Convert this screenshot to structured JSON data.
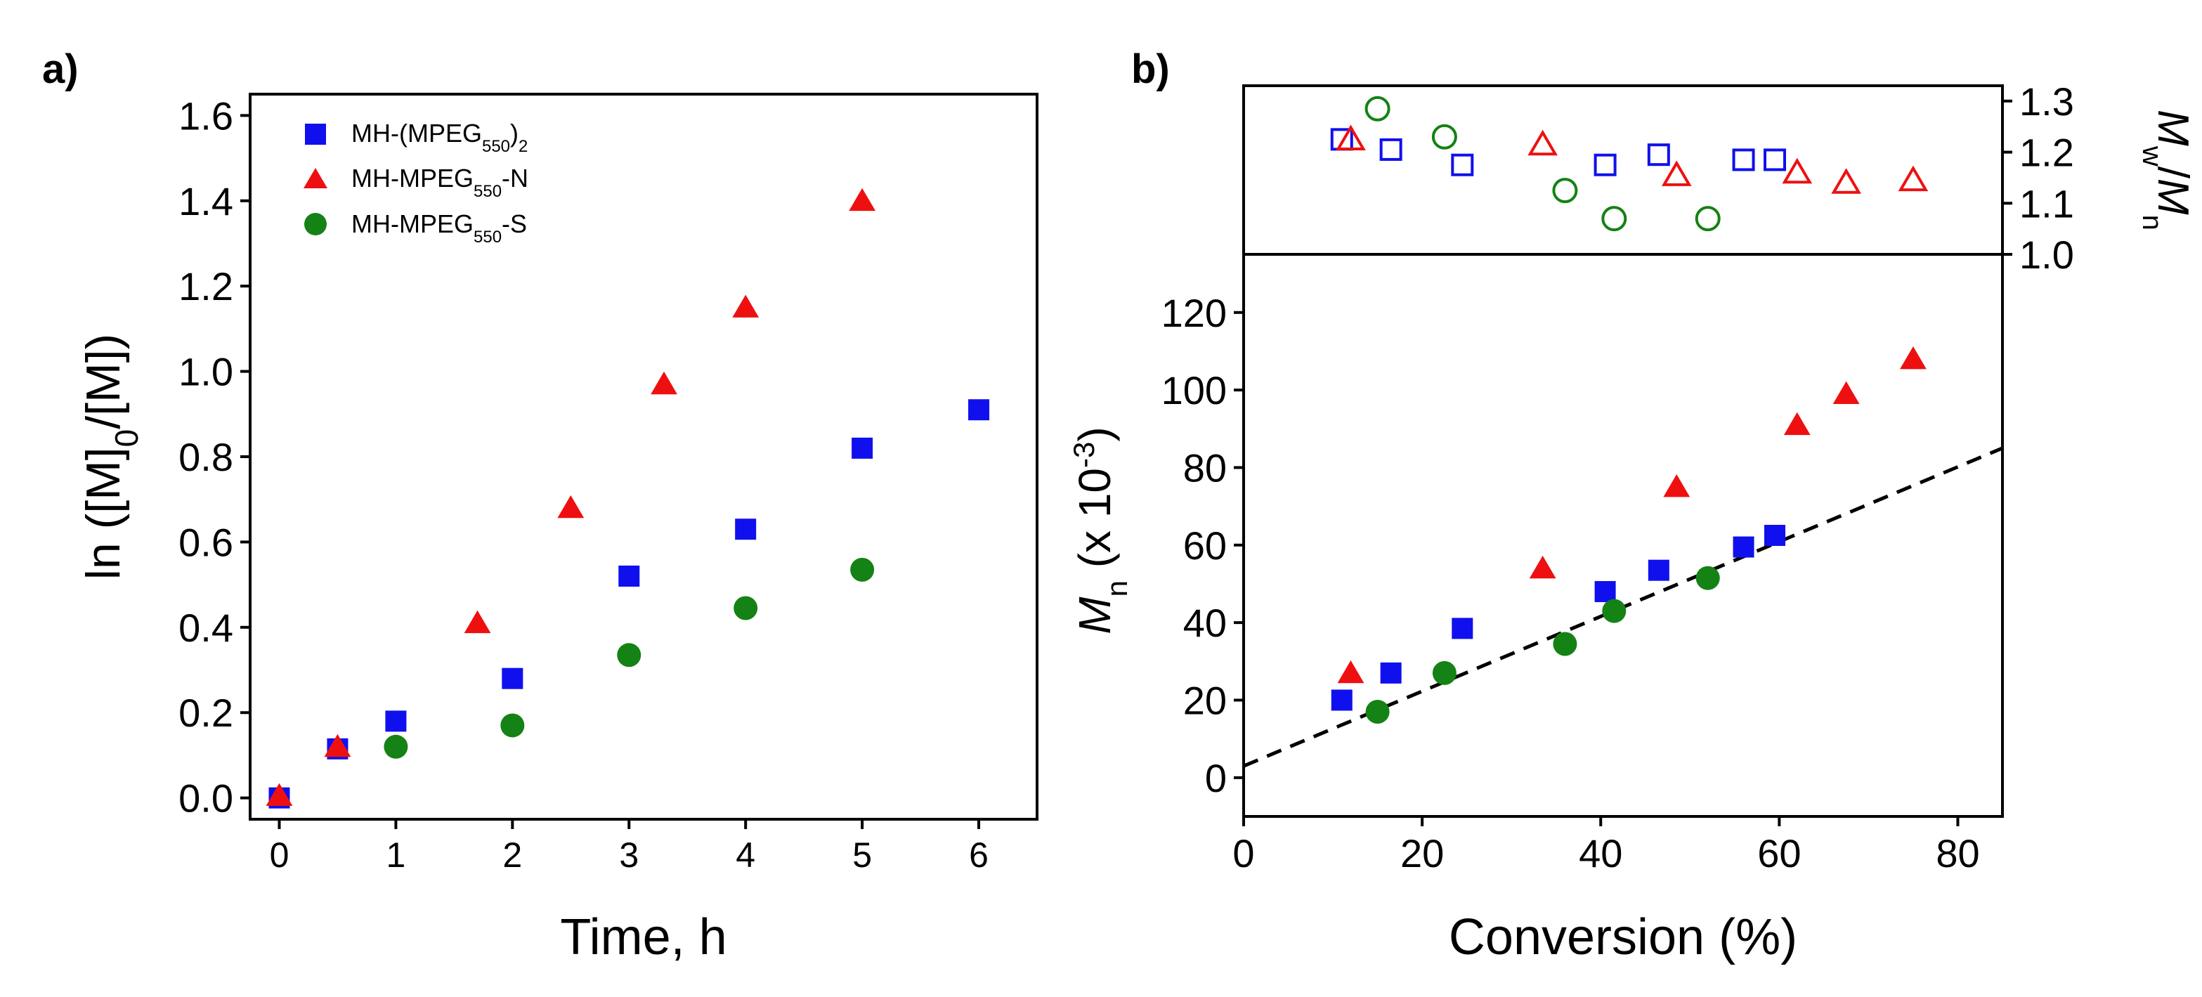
{
  "panel_labels": {
    "a": "a)",
    "b": "b)"
  },
  "colors": {
    "series_a": "#1010ee",
    "series_b": "#ee1010",
    "series_c": "#148214",
    "axis": "#000000",
    "fit_line": "#000000"
  },
  "chart_data": [
    {
      "id": "a",
      "type": "scatter",
      "title": "",
      "xlabel": "Time, h",
      "ylabel_parts": {
        "base": "ln ([M]",
        "sub": "0",
        "tail": "/[M])"
      },
      "xlim": [
        -0.25,
        6.5
      ],
      "ylim": [
        -0.05,
        1.65
      ],
      "xticks": [
        0,
        1,
        2,
        3,
        4,
        5,
        6
      ],
      "yticks": [
        0.0,
        0.2,
        0.4,
        0.6,
        0.8,
        1.0,
        1.2,
        1.4,
        1.6
      ],
      "ytick_labels": [
        "0.0",
        "0.2",
        "0.4",
        "0.6",
        "0.8",
        "1.0",
        "1.2",
        "1.4",
        "1.6"
      ],
      "legend_position": "top-left",
      "series": [
        {
          "key": "series_a",
          "marker": "square",
          "filled": true,
          "label_parts": {
            "pre": "MH-(MPEG",
            "sub": "550",
            "post": ")",
            "sub2": "2"
          },
          "x": [
            0,
            0.5,
            1,
            2,
            3,
            4,
            5,
            6
          ],
          "y": [
            0.0,
            0.115,
            0.18,
            0.28,
            0.52,
            0.63,
            0.82,
            0.91
          ]
        },
        {
          "key": "series_b",
          "marker": "triangle",
          "filled": true,
          "label_parts": {
            "pre": "MH-MPEG",
            "sub": "550",
            "post": "-N",
            "sub2": ""
          },
          "x": [
            0,
            0.5,
            1.7,
            2.5,
            3.3,
            4,
            5
          ],
          "y": [
            0.005,
            0.12,
            0.41,
            0.68,
            0.97,
            1.15,
            1.4
          ]
        },
        {
          "key": "series_c",
          "marker": "circle",
          "filled": true,
          "label_parts": {
            "pre": "MH-MPEG",
            "sub": "550",
            "post": "-S",
            "sub2": ""
          },
          "x": [
            1,
            2,
            3,
            4,
            5
          ],
          "y": [
            0.12,
            0.17,
            0.335,
            0.445,
            0.535
          ]
        }
      ]
    },
    {
      "id": "b_top",
      "type": "scatter",
      "xlim": [
        0,
        85
      ],
      "ylim": [
        1.0,
        1.33
      ],
      "yticks": [
        1.0,
        1.1,
        1.2,
        1.3
      ],
      "ytick_labels": [
        "1.0",
        "1.1",
        "1.2",
        "1.3"
      ],
      "ylabel_parts": {
        "m1": "M",
        "s1": "w",
        "slash": "/",
        "m2": "M",
        "s2": "n"
      },
      "axis_side": "right",
      "series": [
        {
          "key": "series_a",
          "marker": "square",
          "filled": false,
          "x": [
            11,
            16.5,
            24.5,
            40.5,
            46.5,
            56,
            59.5
          ],
          "y": [
            1.225,
            1.205,
            1.175,
            1.175,
            1.195,
            1.185,
            1.185
          ]
        },
        {
          "key": "series_b",
          "marker": "triangle",
          "filled": false,
          "x": [
            12,
            33.5,
            48.5,
            62,
            67.5,
            75
          ],
          "y": [
            1.225,
            1.215,
            1.155,
            1.16,
            1.14,
            1.145
          ]
        },
        {
          "key": "series_c",
          "marker": "circle",
          "filled": false,
          "x": [
            15,
            22.5,
            36,
            41.5,
            52
          ],
          "y": [
            1.285,
            1.23,
            1.125,
            1.07,
            1.07
          ]
        }
      ]
    },
    {
      "id": "b_bottom",
      "type": "scatter",
      "xlabel": "Conversion (%)",
      "ylabel_parts": {
        "m": "M",
        "sub": "n",
        "mid": " (x 10",
        "sup": "-3",
        "end": ")"
      },
      "xlim": [
        0,
        85
      ],
      "ylim": [
        -10,
        135
      ],
      "xticks": [
        0,
        20,
        40,
        60,
        80
      ],
      "yticks": [
        0,
        20,
        40,
        60,
        80,
        100,
        120
      ],
      "ytick_labels": [
        "0",
        "20",
        "40",
        "60",
        "80",
        "100",
        "120"
      ],
      "fit_line": {
        "style": "dashed",
        "x": [
          0,
          85
        ],
        "y": [
          3,
          85
        ]
      },
      "series": [
        {
          "key": "series_a",
          "marker": "square",
          "filled": true,
          "x": [
            11,
            16.5,
            24.5,
            40.5,
            46.5,
            56,
            59.5
          ],
          "y": [
            20,
            27,
            38.5,
            48,
            53.5,
            59.5,
            62.5
          ]
        },
        {
          "key": "series_b",
          "marker": "triangle",
          "filled": true,
          "x": [
            12,
            33.5,
            48.5,
            62,
            67.5,
            75
          ],
          "y": [
            27,
            54,
            75,
            91,
            99,
            108
          ]
        },
        {
          "key": "series_c",
          "marker": "circle",
          "filled": true,
          "x": [
            15,
            22.5,
            36,
            41.5,
            52
          ],
          "y": [
            17,
            27,
            34.5,
            43,
            51.5
          ]
        }
      ]
    }
  ]
}
